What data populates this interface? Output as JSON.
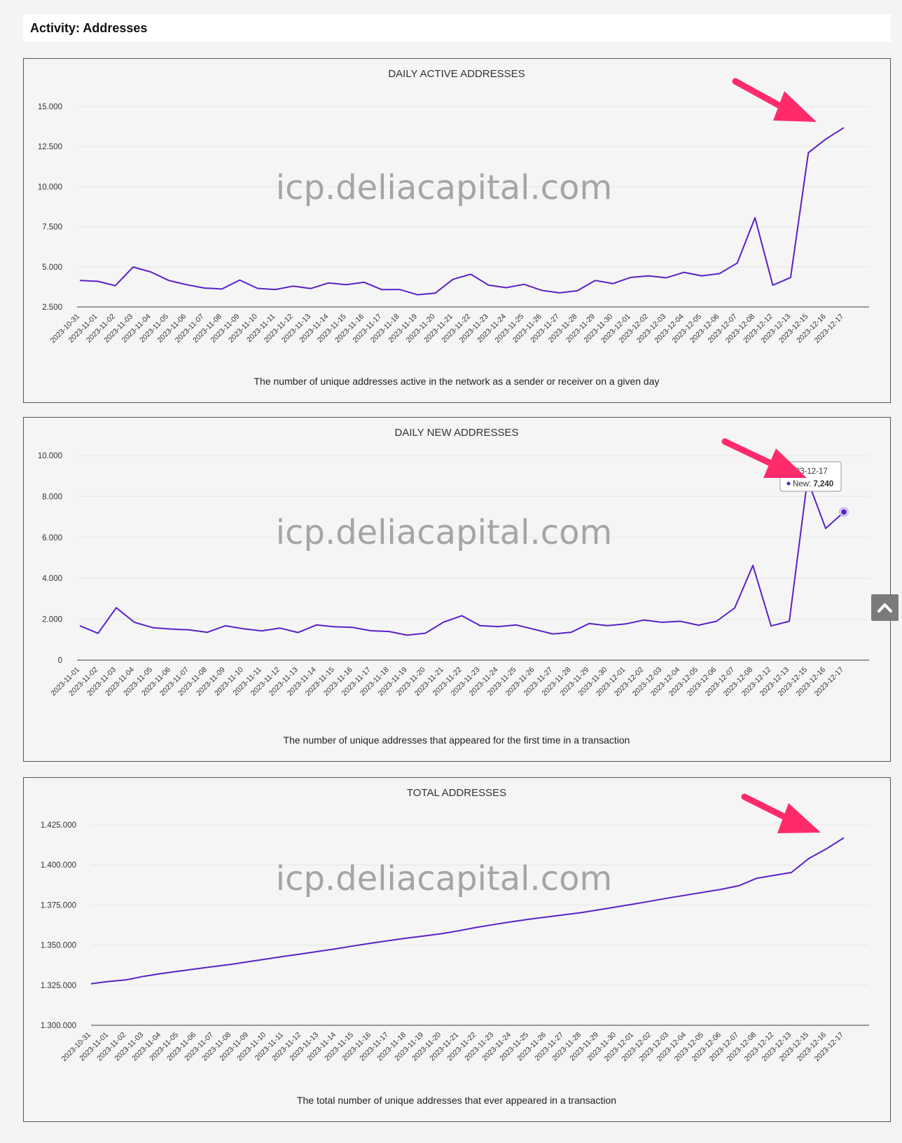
{
  "page": {
    "title": "Activity: Addresses"
  },
  "watermark": "icp.deliacapital.com",
  "colors": {
    "line": "#5b20c8",
    "arrow": "#ff2a6a",
    "grid": "#e6e6e6",
    "axis": "#666666"
  },
  "icons": {
    "scroll_top": "chevron-up-icon"
  },
  "tooltip": {
    "date": "2023-12-17",
    "series_label": "New: ",
    "value": "7,240"
  },
  "chart_data": [
    {
      "type": "line",
      "title": "DAILY ACTIVE ADDRESSES",
      "caption": "The number of unique addresses active in the network as a sender or receiver on a given day",
      "x": [
        "2023-10-31",
        "2023-11-01",
        "2023-11-02",
        "2023-11-03",
        "2023-11-04",
        "2023-11-05",
        "2023-11-06",
        "2023-11-07",
        "2023-11-08",
        "2023-11-09",
        "2023-11-10",
        "2023-11-11",
        "2023-11-12",
        "2023-11-13",
        "2023-11-14",
        "2023-11-15",
        "2023-11-16",
        "2023-11-17",
        "2023-11-18",
        "2023-11-19",
        "2023-11-20",
        "2023-11-21",
        "2023-11-22",
        "2023-11-23",
        "2023-11-24",
        "2023-11-25",
        "2023-11-26",
        "2023-11-27",
        "2023-11-28",
        "2023-11-29",
        "2023-11-30",
        "2023-12-01",
        "2023-12-02",
        "2023-12-03",
        "2023-12-04",
        "2023-12-05",
        "2023-12-06",
        "2023-12-07",
        "2023-12-08",
        "2023-12-12",
        "2023-12-13",
        "2023-12-15",
        "2023-12-16",
        "2023-12-17"
      ],
      "series": [
        {
          "values": [
            4150,
            4100,
            3830,
            4990,
            4680,
            4150,
            3890,
            3680,
            3620,
            4180,
            3660,
            3590,
            3800,
            3650,
            4000,
            3890,
            4040,
            3580,
            3590,
            3260,
            3360,
            4220,
            4540,
            3860,
            3700,
            3910,
            3530,
            3380,
            3510,
            4150,
            3960,
            4340,
            4440,
            4320,
            4660,
            4440,
            4580,
            5240,
            8060,
            3860,
            4330,
            12120,
            12980,
            13680
          ]
        }
      ],
      "yticks": [
        "15.000",
        "12.500",
        "10.000",
        "7.500",
        "5.000",
        "2.500"
      ],
      "ylim": [
        2500,
        15000
      ],
      "grid": true
    },
    {
      "type": "line",
      "title": "DAILY NEW ADDRESSES",
      "caption": "The number of unique addresses that appeared for the first time in a transaction",
      "x": [
        "2023-11-01",
        "2023-11-02",
        "2023-11-03",
        "2023-11-04",
        "2023-11-05",
        "2023-11-06",
        "2023-11-07",
        "2023-11-08",
        "2023-11-09",
        "2023-11-10",
        "2023-11-11",
        "2023-11-12",
        "2023-11-13",
        "2023-11-14",
        "2023-11-15",
        "2023-11-16",
        "2023-11-17",
        "2023-11-18",
        "2023-11-19",
        "2023-11-20",
        "2023-11-21",
        "2023-11-22",
        "2023-11-23",
        "2023-11-24",
        "2023-11-25",
        "2023-11-26",
        "2023-11-27",
        "2023-11-28",
        "2023-11-29",
        "2023-11-30",
        "2023-12-01",
        "2023-12-02",
        "2023-12-03",
        "2023-12-04",
        "2023-12-05",
        "2023-12-06",
        "2023-12-07",
        "2023-12-08",
        "2023-12-12",
        "2023-12-13",
        "2023-12-15",
        "2023-12-16",
        "2023-12-17"
      ],
      "series": [
        {
          "name": "New",
          "values": [
            1680,
            1310,
            2560,
            1850,
            1590,
            1520,
            1480,
            1360,
            1680,
            1530,
            1430,
            1570,
            1350,
            1720,
            1630,
            1600,
            1440,
            1400,
            1220,
            1320,
            1860,
            2170,
            1690,
            1640,
            1720,
            1500,
            1280,
            1360,
            1790,
            1690,
            1770,
            1960,
            1850,
            1900,
            1710,
            1900,
            2550,
            4630,
            1670,
            1900,
            8820,
            6440,
            7240
          ]
        }
      ],
      "yticks": [
        "10.000",
        "8.000",
        "6.000",
        "4.000",
        "2.000",
        "0"
      ],
      "ylim": [
        0,
        10000
      ],
      "grid": true
    },
    {
      "type": "line",
      "title": "TOTAL ADDRESSES",
      "caption": "The total number of unique addresses that ever appeared in a transaction",
      "x": [
        "2023-10-31",
        "2023-11-01",
        "2023-11-02",
        "2023-11-03",
        "2023-11-04",
        "2023-11-05",
        "2023-11-06",
        "2023-11-07",
        "2023-11-08",
        "2023-11-09",
        "2023-11-10",
        "2023-11-11",
        "2023-11-12",
        "2023-11-13",
        "2023-11-14",
        "2023-11-15",
        "2023-11-16",
        "2023-11-17",
        "2023-11-18",
        "2023-11-19",
        "2023-11-20",
        "2023-11-21",
        "2023-11-22",
        "2023-11-23",
        "2023-11-24",
        "2023-11-25",
        "2023-11-26",
        "2023-11-27",
        "2023-11-28",
        "2023-11-29",
        "2023-11-30",
        "2023-12-01",
        "2023-12-02",
        "2023-12-03",
        "2023-12-04",
        "2023-12-05",
        "2023-12-06",
        "2023-12-07",
        "2023-12-08",
        "2023-12-12",
        "2023-12-13",
        "2023-12-15",
        "2023-12-16",
        "2023-12-17"
      ],
      "series": [
        {
          "values": [
            1325900,
            1327300,
            1328300,
            1330500,
            1332200,
            1333700,
            1335200,
            1336600,
            1338000,
            1339700,
            1341300,
            1342900,
            1344500,
            1346100,
            1347700,
            1349500,
            1351200,
            1352800,
            1354300,
            1355700,
            1357100,
            1358900,
            1361000,
            1362800,
            1364500,
            1366100,
            1367500,
            1368900,
            1370300,
            1372000,
            1373800,
            1375600,
            1377500,
            1379400,
            1381200,
            1383000,
            1384800,
            1387000,
            1391600,
            1393500,
            1395300,
            1404000,
            1410000,
            1416900
          ]
        }
      ],
      "yticks": [
        "1.425.000",
        "1.400.000",
        "1.375.000",
        "1.350.000",
        "1.325.000",
        "1.300.000"
      ],
      "ylim": [
        1300000,
        1425000
      ],
      "grid": true
    }
  ]
}
